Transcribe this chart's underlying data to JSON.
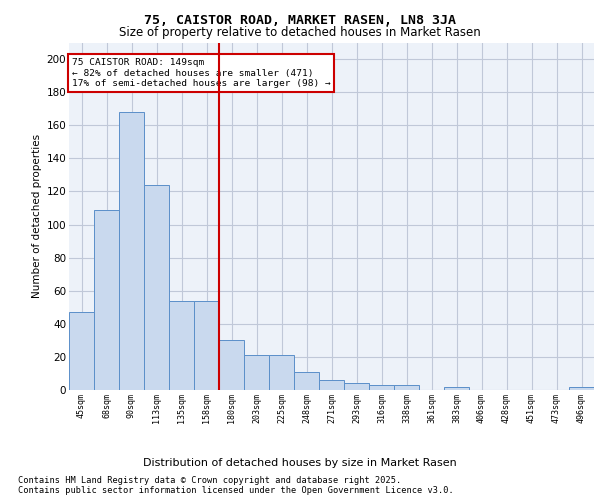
{
  "title1": "75, CAISTOR ROAD, MARKET RASEN, LN8 3JA",
  "title2": "Size of property relative to detached houses in Market Rasen",
  "xlabel": "Distribution of detached houses by size in Market Rasen",
  "ylabel": "Number of detached properties",
  "categories": [
    "45sqm",
    "68sqm",
    "90sqm",
    "113sqm",
    "135sqm",
    "158sqm",
    "180sqm",
    "203sqm",
    "225sqm",
    "248sqm",
    "271sqm",
    "293sqm",
    "316sqm",
    "338sqm",
    "361sqm",
    "383sqm",
    "406sqm",
    "428sqm",
    "451sqm",
    "473sqm",
    "496sqm"
  ],
  "values": [
    47,
    109,
    168,
    124,
    54,
    54,
    30,
    21,
    21,
    11,
    6,
    4,
    3,
    3,
    0,
    2,
    0,
    0,
    0,
    0,
    2
  ],
  "bar_color": "#c9d9ee",
  "bar_edge_color": "#5b8fc9",
  "vline_x": 5.5,
  "vline_color": "#cc0000",
  "annotation_line1": "75 CAISTOR ROAD: 149sqm",
  "annotation_line2": "← 82% of detached houses are smaller (471)",
  "annotation_line3": "17% of semi-detached houses are larger (98) →",
  "annotation_box_color": "#ffffff",
  "annotation_box_edge": "#cc0000",
  "footnote1": "Contains HM Land Registry data © Crown copyright and database right 2025.",
  "footnote2": "Contains public sector information licensed under the Open Government Licence v3.0.",
  "background_color": "#edf2f9",
  "grid_color": "#c0c8d8",
  "ylim": [
    0,
    210
  ],
  "yticks": [
    0,
    20,
    40,
    60,
    80,
    100,
    120,
    140,
    160,
    180,
    200
  ]
}
